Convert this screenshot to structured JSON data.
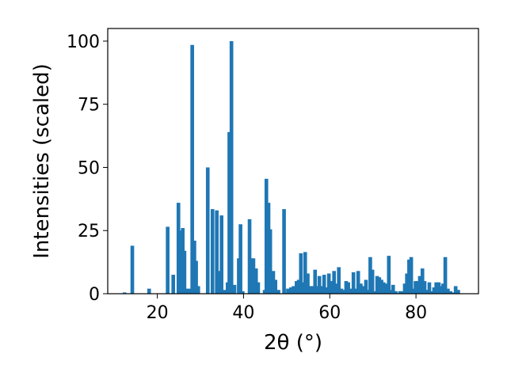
{
  "chart_data": {
    "type": "bar",
    "title": "",
    "xlabel": "2θ (°)",
    "ylabel": "Intensities (scaled)",
    "xlim": [
      8.5,
      94.5
    ],
    "ylim": [
      0,
      105
    ],
    "xticks": [
      20,
      40,
      60,
      80
    ],
    "yticks": [
      0,
      25,
      50,
      75,
      100
    ],
    "bar_color": "#1f77b4",
    "grid": false,
    "x": [
      12.4,
      14.2,
      18.1,
      22.4,
      23.7,
      24.9,
      25.6,
      25.9,
      26.3,
      26.7,
      27.4,
      28.1,
      28.6,
      29.0,
      29.5,
      31.7,
      32.8,
      33.8,
      34.3,
      34.9,
      35.6,
      36.3,
      36.7,
      37.2,
      37.9,
      38.9,
      39.3,
      39.8,
      41.4,
      41.9,
      42.3,
      42.9,
      43.4,
      44.9,
      45.3,
      45.8,
      46.2,
      46.9,
      47.4,
      48.1,
      49.4,
      50.3,
      51.0,
      51.6,
      52.3,
      52.8,
      53.3,
      53.8,
      54.3,
      54.9,
      55.4,
      55.9,
      56.6,
      57.1,
      57.6,
      58.2,
      58.7,
      59.3,
      59.8,
      60.4,
      61.0,
      61.6,
      62.1,
      62.7,
      63.2,
      63.8,
      64.3,
      64.9,
      65.5,
      66.0,
      66.6,
      67.2,
      67.8,
      68.4,
      68.9,
      69.4,
      69.9,
      70.5,
      71.0,
      71.5,
      72.0,
      72.5,
      73.1,
      73.7,
      74.2,
      74.7,
      75.3,
      76.3,
      76.9,
      77.4,
      77.9,
      78.4,
      78.9,
      79.4,
      79.9,
      80.4,
      80.9,
      81.5,
      82.0,
      82.6,
      83.1,
      83.7,
      84.2,
      84.7,
      85.3,
      85.8,
      86.3,
      86.8,
      87.4,
      88.0,
      88.6,
      89.2,
      89.8
    ],
    "values": [
      0.5,
      19,
      2,
      26.5,
      7.5,
      36,
      25,
      26,
      17,
      2,
      2,
      98.5,
      21,
      13,
      3,
      50,
      33.5,
      33,
      9,
      31,
      1.5,
      4.5,
      64,
      100,
      3.5,
      14,
      27.5,
      1,
      29.5,
      14,
      14,
      10,
      4.5,
      1.5,
      45.5,
      36,
      25.5,
      9,
      5.5,
      1.5,
      33.5,
      2,
      2.5,
      3,
      5,
      5.5,
      16,
      4.5,
      16.5,
      8,
      3,
      3,
      9.5,
      3,
      7,
      3,
      7.5,
      2.5,
      8,
      5,
      9,
      4,
      10.5,
      2,
      1.5,
      5,
      4.5,
      2,
      8.5,
      2,
      9,
      4,
      3,
      5.5,
      1.5,
      14.5,
      9.5,
      1,
      7,
      6.5,
      5.5,
      4.5,
      4,
      15,
      1.5,
      3.5,
      1,
      1,
      1,
      4,
      8,
      13.5,
      14.5,
      2,
      5,
      5,
      7,
      10,
      5,
      1.5,
      4.5,
      1,
      2.5,
      4.5,
      4.5,
      3,
      4,
      14.5,
      2,
      1,
      0.5,
      3,
      1.5
    ]
  }
}
